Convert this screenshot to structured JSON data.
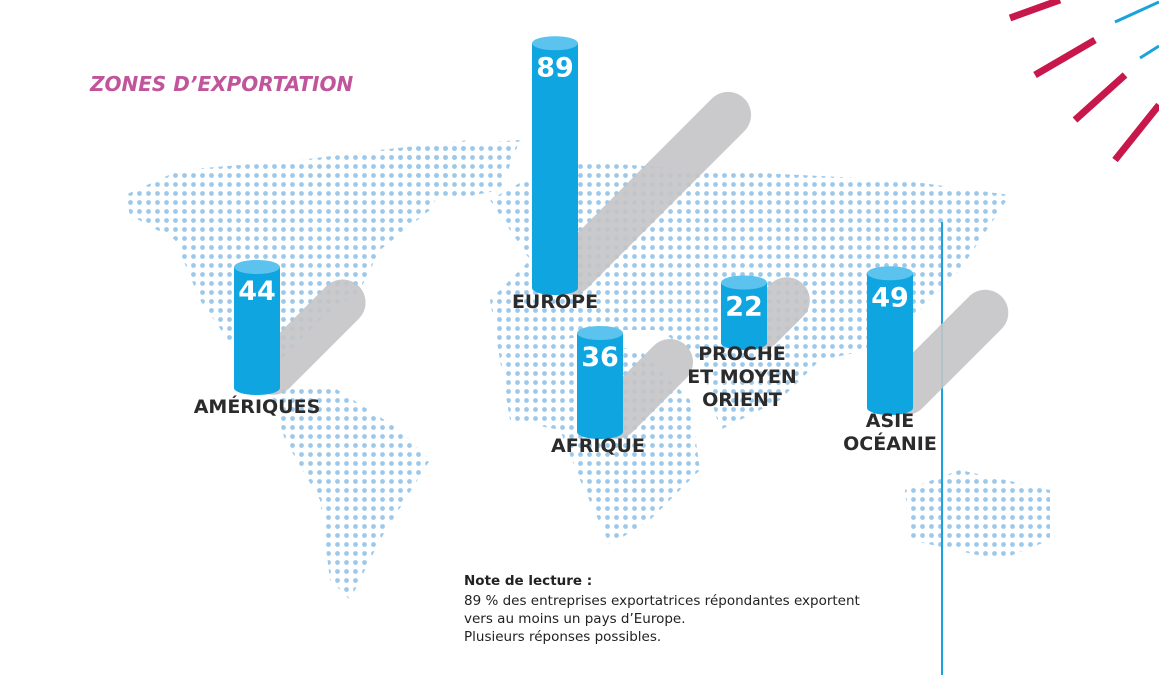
{
  "chart_data": {
    "type": "cylinder",
    "title": "ZONES D’EXPORTATION",
    "categories": [
      "AMÉRIQUES",
      "EUROPE",
      "AFRIQUE",
      "PROCHE\nET MOYEN\nORIENT",
      "ASIE\nOCÉANIE"
    ],
    "values": [
      44,
      89,
      36,
      22,
      49
    ],
    "color": "#0ea5e0",
    "note": {
      "title": "Note de lecture :",
      "lines": [
        "89 % des entreprises exportatrices répondantes exportent",
        "vers au moins un pays d’Europe.",
        "Plusieurs réponses possibles."
      ]
    }
  }
}
